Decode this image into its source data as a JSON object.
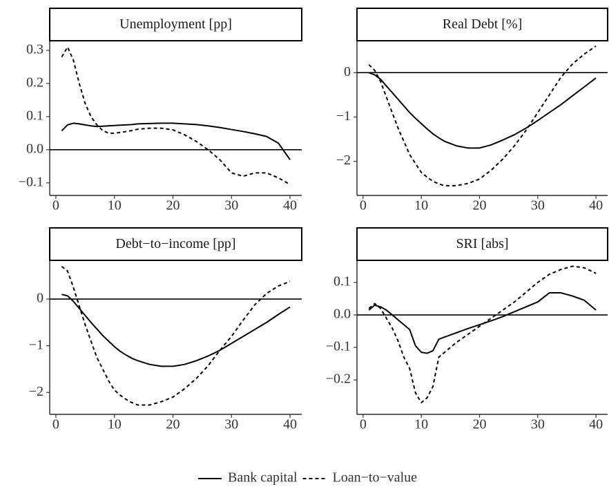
{
  "chart_data": [
    {
      "type": "line",
      "title": "Unemployment [pp]",
      "x": [
        1,
        2,
        3,
        4,
        5,
        6,
        7,
        8,
        9,
        10,
        11,
        12,
        13,
        14,
        16,
        18,
        20,
        22,
        24,
        26,
        28,
        30,
        32,
        34,
        36,
        38,
        40
      ],
      "series": [
        {
          "name": "Bank capital",
          "color": "#000000",
          "linestyle": "solid",
          "values": [
            0.057,
            0.075,
            0.08,
            0.078,
            0.075,
            0.072,
            0.07,
            0.071,
            0.072,
            0.073,
            0.074,
            0.075,
            0.076,
            0.078,
            0.079,
            0.08,
            0.08,
            0.078,
            0.076,
            0.072,
            0.067,
            0.061,
            0.055,
            0.048,
            0.04,
            0.02,
            -0.03
          ]
        },
        {
          "name": "Loan−to−value",
          "color": "#000000",
          "linestyle": "dashed",
          "values": [
            0.28,
            0.31,
            0.27,
            0.2,
            0.14,
            0.1,
            0.075,
            0.058,
            0.05,
            0.05,
            0.052,
            0.055,
            0.058,
            0.062,
            0.065,
            0.065,
            0.06,
            0.045,
            0.025,
            0,
            -0.03,
            -0.07,
            -0.08,
            -0.07,
            -0.07,
            -0.085,
            -0.105
          ]
        }
      ],
      "hline": 0,
      "xlim": [
        -1.05,
        42
      ],
      "xticks": [
        0,
        10,
        20,
        30,
        40
      ],
      "ylim": [
        -0.138,
        0.329
      ],
      "yticks": [
        {
          "value": -0.1,
          "label": "−0.1"
        },
        {
          "value": 0,
          "label": "0.0"
        },
        0.1,
        0.2,
        0.3
      ],
      "legend": "bottom"
    },
    {
      "type": "line",
      "title": "Real Debt [%]",
      "x": [
        1,
        2,
        3,
        4,
        5,
        6,
        7,
        8,
        9,
        10,
        11,
        12,
        13,
        14,
        16,
        18,
        20,
        22,
        24,
        26,
        28,
        30,
        32,
        34,
        36,
        38,
        40
      ],
      "series": [
        {
          "name": "Bank capital",
          "color": "#000000",
          "linestyle": "solid",
          "values": [
            0,
            -0.05,
            -0.15,
            -0.3,
            -0.45,
            -0.6,
            -0.75,
            -0.9,
            -1.03,
            -1.15,
            -1.27,
            -1.38,
            -1.47,
            -1.55,
            -1.65,
            -1.7,
            -1.7,
            -1.63,
            -1.52,
            -1.4,
            -1.25,
            -1.08,
            -0.9,
            -0.72,
            -0.52,
            -0.32,
            -0.12
          ]
        },
        {
          "name": "Loan−to−value",
          "color": "#000000",
          "linestyle": "dashed",
          "values": [
            0.18,
            0.05,
            -0.2,
            -0.55,
            -0.9,
            -1.25,
            -1.55,
            -1.85,
            -2.05,
            -2.25,
            -2.36,
            -2.45,
            -2.51,
            -2.55,
            -2.55,
            -2.5,
            -2.4,
            -2.2,
            -1.95,
            -1.65,
            -1.3,
            -0.9,
            -0.5,
            -0.1,
            0.2,
            0.42,
            0.6
          ]
        }
      ],
      "hline": 0,
      "xlim": [
        -1.05,
        42
      ],
      "xticks": [
        0,
        10,
        20,
        30,
        40
      ],
      "ylim": [
        -2.77,
        0.72
      ],
      "yticks": [
        {
          "value": -2,
          "label": "−2"
        },
        {
          "value": -1,
          "label": "−1"
        },
        0
      ],
      "legend": "bottom"
    },
    {
      "type": "line",
      "title": "Debt−to−income [pp]",
      "x": [
        1,
        2,
        3,
        4,
        5,
        6,
        7,
        8,
        9,
        10,
        11,
        12,
        13,
        14,
        16,
        18,
        20,
        22,
        24,
        26,
        28,
        30,
        32,
        34,
        36,
        38,
        40
      ],
      "series": [
        {
          "name": "Bank capital",
          "color": "#000000",
          "linestyle": "solid",
          "values": [
            0.1,
            0.07,
            -0.05,
            -0.2,
            -0.35,
            -0.5,
            -0.64,
            -0.78,
            -0.9,
            -1.02,
            -1.12,
            -1.2,
            -1.27,
            -1.32,
            -1.4,
            -1.44,
            -1.44,
            -1.4,
            -1.32,
            -1.22,
            -1.1,
            -0.95,
            -0.8,
            -0.65,
            -0.5,
            -0.33,
            -0.17
          ]
        },
        {
          "name": "Loan−to−value",
          "color": "#000000",
          "linestyle": "dashed",
          "values": [
            0.7,
            0.6,
            0.25,
            -0.15,
            -0.55,
            -0.9,
            -1.25,
            -1.5,
            -1.75,
            -1.95,
            -2.06,
            -2.15,
            -2.22,
            -2.27,
            -2.27,
            -2.2,
            -2.1,
            -1.92,
            -1.7,
            -1.43,
            -1.1,
            -0.8,
            -0.45,
            -0.12,
            0.12,
            0.28,
            0.38
          ]
        }
      ],
      "hline": 0,
      "xlim": [
        -1.05,
        42
      ],
      "xticks": [
        0,
        10,
        20,
        30,
        40
      ],
      "ylim": [
        -2.47,
        0.83
      ],
      "yticks": [
        {
          "value": -2,
          "label": "−2"
        },
        {
          "value": -1,
          "label": "−1"
        },
        0
      ],
      "legend": "bottom"
    },
    {
      "type": "line",
      "title": "SRI [abs]",
      "x": [
        1,
        2,
        3,
        4,
        5,
        6,
        7,
        8,
        9,
        10,
        11,
        12,
        13,
        14,
        16,
        18,
        20,
        22,
        24,
        26,
        28,
        30,
        32,
        34,
        36,
        38,
        40
      ],
      "series": [
        {
          "name": "Bank capital",
          "color": "#000000",
          "linestyle": "solid",
          "values": [
            0.015,
            0.03,
            0.025,
            0.015,
            0,
            -0.015,
            -0.03,
            -0.045,
            -0.095,
            -0.115,
            -0.118,
            -0.11,
            -0.075,
            -0.068,
            -0.055,
            -0.042,
            -0.03,
            -0.018,
            -0.005,
            0.01,
            0.025,
            0.04,
            0.068,
            0.068,
            0.058,
            0.045,
            0.015
          ]
        },
        {
          "name": "Loan−to−value",
          "color": "#000000",
          "linestyle": "dashed",
          "values": [
            0.02,
            0.035,
            0.02,
            -0.01,
            -0.04,
            -0.08,
            -0.13,
            -0.165,
            -0.24,
            -0.27,
            -0.255,
            -0.22,
            -0.13,
            -0.115,
            -0.085,
            -0.06,
            -0.035,
            -0.01,
            0.015,
            0.04,
            0.07,
            0.1,
            0.125,
            0.14,
            0.15,
            0.145,
            0.128
          ]
        }
      ],
      "hline": 0,
      "xlim": [
        -1.05,
        42
      ],
      "xticks": [
        0,
        10,
        20,
        30,
        40
      ],
      "ylim": [
        -0.306,
        0.168
      ],
      "yticks": [
        {
          "value": -0.2,
          "label": "−0.2"
        },
        {
          "value": -0.1,
          "label": "−0.1"
        },
        {
          "value": 0,
          "label": "0.0"
        },
        0.1
      ],
      "legend": "bottom"
    }
  ]
}
